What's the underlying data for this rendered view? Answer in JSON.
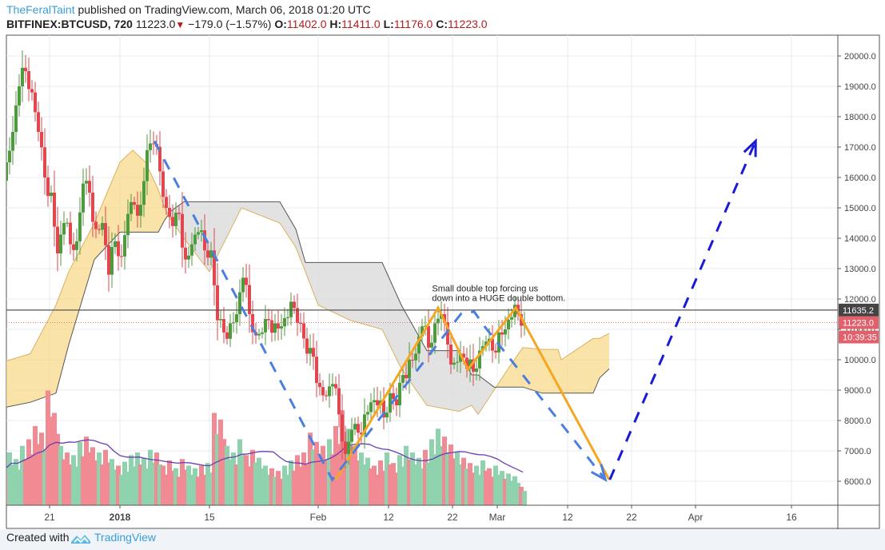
{
  "header": {
    "author": "TheFeralTaint",
    "published": "published on TradingView.com, March 06, 2018 01:20 UTC",
    "symbol": "BITFINEX:BTCUSD, 720",
    "last": "11223.0",
    "change": "−179.0 (−1.57%)",
    "o_label": "O:",
    "o": "11402.0",
    "h_label": "H:",
    "h": "11411.0",
    "l_label": "L:",
    "l": "11176.0",
    "c_label": "C:",
    "c": "11223.0",
    "direction_icon": "triangle-down-icon"
  },
  "footer": {
    "created_with": "Created with",
    "brand": "TradingView"
  },
  "colors": {
    "up": "#4f9a3e",
    "down": "#e0474f",
    "vol_up": "#8ed3ad",
    "vol_down": "#f28a94",
    "cloud_bull": "#f7d98b",
    "cloud_bear": "#d8d8d8",
    "orange": "#f5a623",
    "blue": "#4a7fe0",
    "navy": "#1a1ad6",
    "vol_ma": "#6a3fb0"
  },
  "chart_data": {
    "type": "candlestick",
    "title": "BITFINEX:BTCUSD, 720",
    "ylim": [
      5200,
      20600
    ],
    "xlim_days_from_2018_01_01": [
      -18.75,
      111.25
    ],
    "y_ticks": [
      6000,
      7000,
      8000,
      9000,
      10000,
      11000,
      12000,
      13000,
      14000,
      15000,
      16000,
      17000,
      18000,
      19000,
      20000
    ],
    "y_tick_labels": [
      "6000.0",
      "7000.0",
      "8000.0",
      "9000.0",
      "10000.0",
      "11000.0",
      "12000.0",
      "13000.0",
      "14000.0",
      "15000.0",
      "16000.0",
      "17000.0",
      "18000.0",
      "19000.0",
      "20000.0"
    ],
    "x_ticks": [
      {
        "day": -11,
        "label": "21",
        "bold": false
      },
      {
        "day": 0,
        "label": "2018",
        "bold": true
      },
      {
        "day": 14,
        "label": "15",
        "bold": false
      },
      {
        "day": 31,
        "label": "Feb",
        "bold": false
      },
      {
        "day": 42,
        "label": "12",
        "bold": false
      },
      {
        "day": 52,
        "label": "22",
        "bold": false
      },
      {
        "day": 59,
        "label": "Mar",
        "bold": false
      },
      {
        "day": 70,
        "label": "12",
        "bold": false
      },
      {
        "day": 80,
        "label": "22",
        "bold": false
      },
      {
        "day": 90,
        "label": "Apr",
        "bold": false
      },
      {
        "day": 105,
        "label": "16",
        "bold": false
      }
    ],
    "start_day": -18,
    "daily_close": [
      16500,
      17500,
      19000,
      19500,
      18800,
      17500,
      16000,
      15500,
      13500,
      14500,
      13800,
      13900,
      15800,
      15500,
      14300,
      14500,
      12800,
      13900,
      13400,
      14800,
      15100,
      15100,
      16900,
      17100,
      16200,
      15000,
      14400,
      14800,
      13300,
      13800,
      14200,
      13600,
      13600,
      11300,
      10900,
      11200,
      11500,
      12700,
      11500,
      10800,
      10900,
      11300,
      11200,
      11100,
      11400,
      11700,
      11200,
      10200,
      10100,
      9100,
      8800,
      9200,
      8200,
      6900,
      7700,
      7600,
      8200,
      8600,
      8500,
      8100,
      8900,
      8500,
      9500,
      10000,
      10200,
      11100,
      10400,
      11200,
      11500,
      10500,
      9900,
      10200,
      9700,
      9600,
      10300,
      10600,
      10300,
      10900,
      11000,
      11400,
      11500,
      11223
    ],
    "daily_volume": [
      30,
      40,
      35,
      45,
      50,
      60,
      55,
      87,
      70,
      45,
      40,
      38,
      48,
      52,
      44,
      40,
      42,
      35,
      30,
      33,
      38,
      40,
      36,
      42,
      40,
      30,
      34,
      28,
      35,
      30,
      28,
      30,
      32,
      70,
      65,
      45,
      40,
      50,
      38,
      42,
      36,
      30,
      28,
      26,
      30,
      34,
      38,
      40,
      55,
      48,
      45,
      50,
      60,
      72,
      58,
      44,
      40,
      36,
      30,
      34,
      40,
      32,
      38,
      45,
      40,
      36,
      42,
      50,
      58,
      52,
      46,
      40,
      36,
      32,
      30,
      34,
      28,
      30,
      26,
      24,
      22,
      14
    ],
    "ichimoku_cloud": [
      [
        -18.7,
        9900,
        8400
      ],
      [
        -14,
        10200,
        8600
      ],
      [
        -10,
        11800,
        8900
      ],
      [
        -8,
        12900,
        10500
      ],
      [
        -4,
        14500,
        13300
      ],
      [
        0,
        16500,
        14200
      ],
      [
        2,
        16900,
        14200
      ],
      [
        4,
        16500,
        14200
      ],
      [
        6,
        15600,
        14200
      ],
      [
        7,
        15000,
        14600
      ],
      [
        8,
        14600,
        14900
      ],
      [
        10,
        14000,
        15200
      ],
      [
        14,
        12900,
        15200
      ],
      [
        19,
        15000,
        15200
      ],
      [
        25,
        14500,
        15200
      ],
      [
        27.5,
        13700,
        14300
      ],
      [
        29,
        12900,
        13200
      ],
      [
        31,
        11800,
        13200
      ],
      [
        36,
        11300,
        13200
      ],
      [
        41,
        11000,
        13200
      ],
      [
        44,
        9700,
        11800
      ],
      [
        48,
        8500,
        10300
      ],
      [
        53,
        8300,
        10300
      ],
      [
        55,
        8500,
        9500
      ],
      [
        56,
        8200,
        9500
      ],
      [
        58.5,
        9000,
        9100
      ],
      [
        61,
        9800,
        9100
      ],
      [
        63,
        10400,
        9100
      ],
      [
        66,
        10340,
        8900
      ],
      [
        68.5,
        10340,
        8900
      ],
      [
        69,
        10000,
        8900
      ],
      [
        74,
        10700,
        8900
      ],
      [
        75,
        10700,
        9400
      ],
      [
        76.5,
        10870,
        9700
      ]
    ],
    "horizontal_line": {
      "value": 11635.2,
      "label": "11635.2"
    },
    "last_price_line": {
      "value": 11223.0,
      "label": "11223.0",
      "countdown": "10:39:35"
    },
    "annotation": {
      "lines": [
        "Small double top forcing us",
        "down into a HUGE double bottom."
      ],
      "day": 48.8,
      "price": 12250
    },
    "orange_path": [
      [
        33.75,
        6053
      ],
      [
        49.75,
        11711
      ],
      [
        54.4,
        9684
      ],
      [
        61.9,
        11711
      ],
      [
        76.5,
        6053
      ]
    ],
    "blue_path": [
      [
        5.4,
        17200
      ],
      [
        33.2,
        6053
      ],
      [
        53.4,
        11530
      ],
      [
        55.4,
        11580
      ],
      [
        57,
        11100
      ],
      [
        75.9,
        6053
      ]
    ],
    "navy_path": [
      [
        76.6,
        6053
      ],
      [
        99.4,
        17200
      ]
    ]
  }
}
